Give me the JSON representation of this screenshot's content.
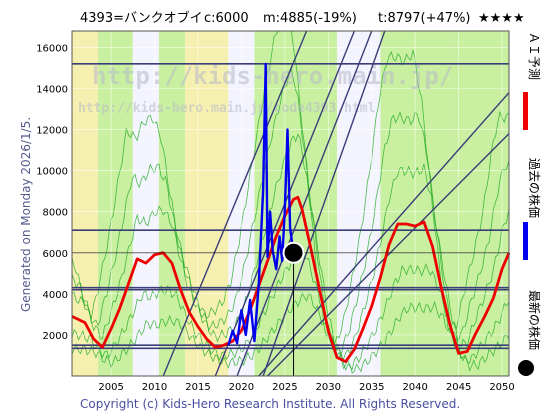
{
  "header": {
    "title": "4393=バンクオブイ",
    "current": "c:6000",
    "mean": "m:4885(-19%)",
    "target": "t:8797(+47%)",
    "stars": "★★★★"
  },
  "side_label": "Generated on Monday 2026/1/5.",
  "legend": {
    "ai": "ＡＩ予測",
    "past": "過去の株価",
    "latest": "最新の株価"
  },
  "watermark": {
    "large": "http://kids-hero.main.jp/",
    "small": "http://kids-hero.main.jp/code4393.html"
  },
  "copyright": "Copyright (c) Kids-Hero Research Institute. All Rights Reserved.",
  "colors": {
    "ai_line": "#ee0000",
    "past_line": "#0000ee",
    "latest_marker": "#000000",
    "green_band": "#c8f0a0",
    "yellow_band": "#f5f0b0",
    "white_band": "#f4f4ff",
    "channel_line": "#3a3d78",
    "sim_line": "#22aa22"
  },
  "chart_data": {
    "type": "line",
    "xlim": [
      2000.5,
      2050.8
    ],
    "ylim": [
      0,
      16800
    ],
    "x_ticks": [
      2005,
      2010,
      2015,
      2020,
      2025,
      2030,
      2035,
      2040,
      2045,
      2050
    ],
    "y_ticks": [
      2000,
      4000,
      6000,
      8000,
      10000,
      12000,
      14000,
      16000
    ],
    "grid": true,
    "hlines": [
      15200,
      7100,
      4300,
      4200,
      1500,
      1350
    ],
    "latest_point": {
      "x": 2026.0,
      "y": 6000
    },
    "series": [
      {
        "name": "ＡＩ予測",
        "x": [
          2000.5,
          2002,
          2003,
          2004,
          2005,
          2006,
          2007,
          2008,
          2009,
          2010,
          2011,
          2012,
          2013,
          2014,
          2015,
          2016,
          2017,
          2018,
          2019,
          2020,
          2021,
          2022,
          2023,
          2024,
          2025,
          2026,
          2026.5,
          2027,
          2028,
          2029,
          2030,
          2031,
          2032,
          2033,
          2034,
          2035,
          2036,
          2037,
          2038,
          2039,
          2040,
          2041,
          2042,
          2043,
          2044,
          2045,
          2046,
          2047,
          2048,
          2049,
          2050,
          2050.8
        ],
        "y": [
          2900,
          2600,
          1800,
          1400,
          2300,
          3300,
          4500,
          5700,
          5500,
          5900,
          6000,
          5500,
          4200,
          3100,
          2400,
          1800,
          1400,
          1500,
          1700,
          2200,
          3200,
          4400,
          5600,
          6800,
          7800,
          8600,
          8700,
          8100,
          6200,
          4200,
          2200,
          900,
          700,
          1300,
          2300,
          3400,
          4800,
          6400,
          7400,
          7400,
          7300,
          7500,
          6300,
          4300,
          2500,
          1100,
          1200,
          2100,
          2900,
          3800,
          5200,
          6000
        ]
      },
      {
        "name": "過去の株価",
        "x": [
          2018.5,
          2019,
          2019.5,
          2020,
          2020.5,
          2021,
          2021.5,
          2022,
          2022.5,
          2022.8,
          2023,
          2023.3,
          2023.6,
          2024,
          2024.4,
          2024.7,
          2025,
          2025.3,
          2025.6,
          2026
        ],
        "y": [
          1500,
          2200,
          1600,
          3200,
          2000,
          3700,
          1700,
          4500,
          9000,
          15200,
          5800,
          8000,
          6100,
          5200,
          6800,
          5600,
          8200,
          12000,
          7200,
          6000
        ]
      }
    ],
    "channels": [
      {
        "x": [
          2011,
          2027.5
        ],
        "y": [
          0,
          16800
        ]
      },
      {
        "x": [
          2017,
          2033
        ],
        "y": [
          0,
          16800
        ]
      },
      {
        "x": [
          2019.5,
          2035
        ],
        "y": [
          0,
          16800
        ]
      },
      {
        "x": [
          2022.5,
          2036.5
        ],
        "y": [
          0,
          16800
        ]
      },
      {
        "x": [
          2022,
          2050.8
        ],
        "y": [
          0,
          13800
        ]
      },
      {
        "x": [
          2023,
          2050.8
        ],
        "y": [
          0,
          11800
        ]
      }
    ],
    "bands": [
      {
        "from": 2000.5,
        "to": 2003.5,
        "fill": "yellow"
      },
      {
        "from": 2003.5,
        "to": 2007.5,
        "fill": "green"
      },
      {
        "from": 2007.5,
        "to": 2010.5,
        "fill": "white"
      },
      {
        "from": 2010.5,
        "to": 2013.5,
        "fill": "green"
      },
      {
        "from": 2013.5,
        "to": 2018.5,
        "fill": "yellow"
      },
      {
        "from": 2018.5,
        "to": 2021.5,
        "fill": "white"
      },
      {
        "from": 2021.5,
        "to": 2031,
        "fill": "green"
      },
      {
        "from": 2031,
        "to": 2036,
        "fill": "white"
      },
      {
        "from": 2036,
        "to": 2044,
        "fill": "green"
      },
      {
        "from": 2044,
        "to": 2050.8,
        "fill": "green"
      }
    ]
  }
}
